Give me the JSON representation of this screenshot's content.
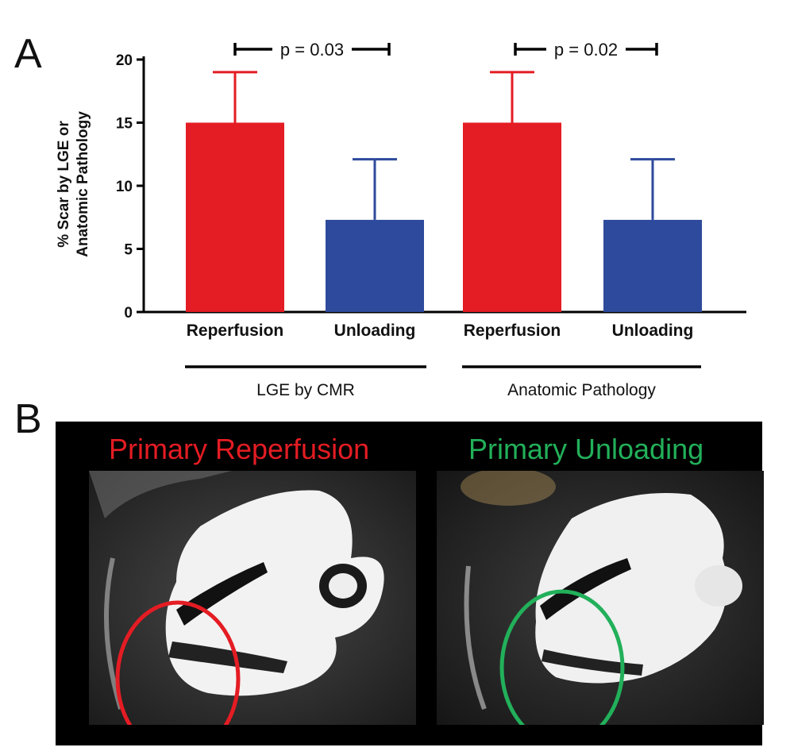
{
  "panel_labels": {
    "a": "A",
    "b": "B"
  },
  "chart_data": {
    "type": "bar",
    "title": "",
    "ylabel_line1": "% Scar by LGE or",
    "ylabel_line2": "Anatomic Pathology",
    "ylim": [
      0,
      20
    ],
    "yticks": [
      "0",
      "5",
      "10",
      "15",
      "20"
    ],
    "categories": [
      "Reperfusion",
      "Unloading",
      "Reperfusion",
      "Unloading"
    ],
    "values": [
      15,
      7.3,
      15,
      7.3
    ],
    "error_upper": [
      19,
      12.1,
      19,
      12.1
    ],
    "bar_colors": [
      "#e41c23",
      "#2e4a9c",
      "#e41c23",
      "#2e4a9c"
    ],
    "groups": [
      {
        "label": "LGE by CMR",
        "p_value": "p = 0.03"
      },
      {
        "label": "Anatomic Pathology",
        "p_value": "p = 0.02"
      }
    ]
  },
  "panel_b": {
    "left_title": "Primary Reperfusion",
    "right_title": "Primary Unloading",
    "left_color": "#e41c23",
    "right_color": "#22b05a"
  }
}
